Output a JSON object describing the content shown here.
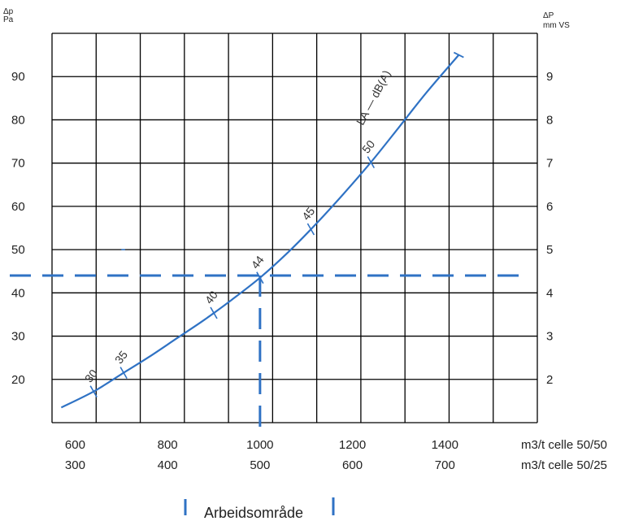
{
  "chart_data": {
    "type": "line",
    "left_axis": {
      "symbol": "Δp",
      "unit": "Pa",
      "ticks": [
        "90",
        "80",
        "70",
        "60",
        "50",
        "40",
        "30",
        "20"
      ],
      "ylim": [
        10,
        100
      ]
    },
    "right_axis": {
      "symbol": "ΔP",
      "unit": "mm VS",
      "ticks": [
        "9",
        "8",
        "7",
        "6",
        "5",
        "4",
        "3",
        "2"
      ],
      "ylim": [
        1,
        10
      ]
    },
    "x_axis": {
      "rows": [
        {
          "ticks": [
            "600",
            "800",
            "1000",
            "1200",
            "1400"
          ],
          "label": "m3/t celle 50/50"
        },
        {
          "ticks": [
            "300",
            "400",
            "500",
            "600",
            "700"
          ],
          "label": "m3/t celle 50/25"
        }
      ],
      "xlim": [
        550,
        1600
      ]
    },
    "series": [
      {
        "name": "LA — dB(A)",
        "x": [
          570,
          640,
          700,
          760,
          820,
          880,
          940,
          1000,
          1060,
          1120,
          1180,
          1240,
          1300,
          1360,
          1430
        ],
        "y": [
          13.5,
          17.2,
          21.2,
          25.2,
          29.5,
          33.8,
          38.5,
          43.5,
          49.3,
          55.8,
          62.8,
          70.2,
          78.2,
          86.3,
          95
        ]
      }
    ],
    "sound_marks": [
      {
        "label": "30",
        "x": 640
      },
      {
        "label": "35",
        "x": 705
      },
      {
        "label": "40",
        "x": 900
      },
      {
        "label": "44",
        "x": 1000
      },
      {
        "label": "45",
        "x": 1110
      },
      {
        "label": "50",
        "x": 1240
      }
    ],
    "operating_point": {
      "x": 1000,
      "y": 44
    },
    "legend": {
      "label": "Arbeidsområde"
    },
    "grid": true,
    "colors": {
      "curve": "#2f72c4",
      "grid": "#000000",
      "dash": "#2f72c4"
    }
  }
}
